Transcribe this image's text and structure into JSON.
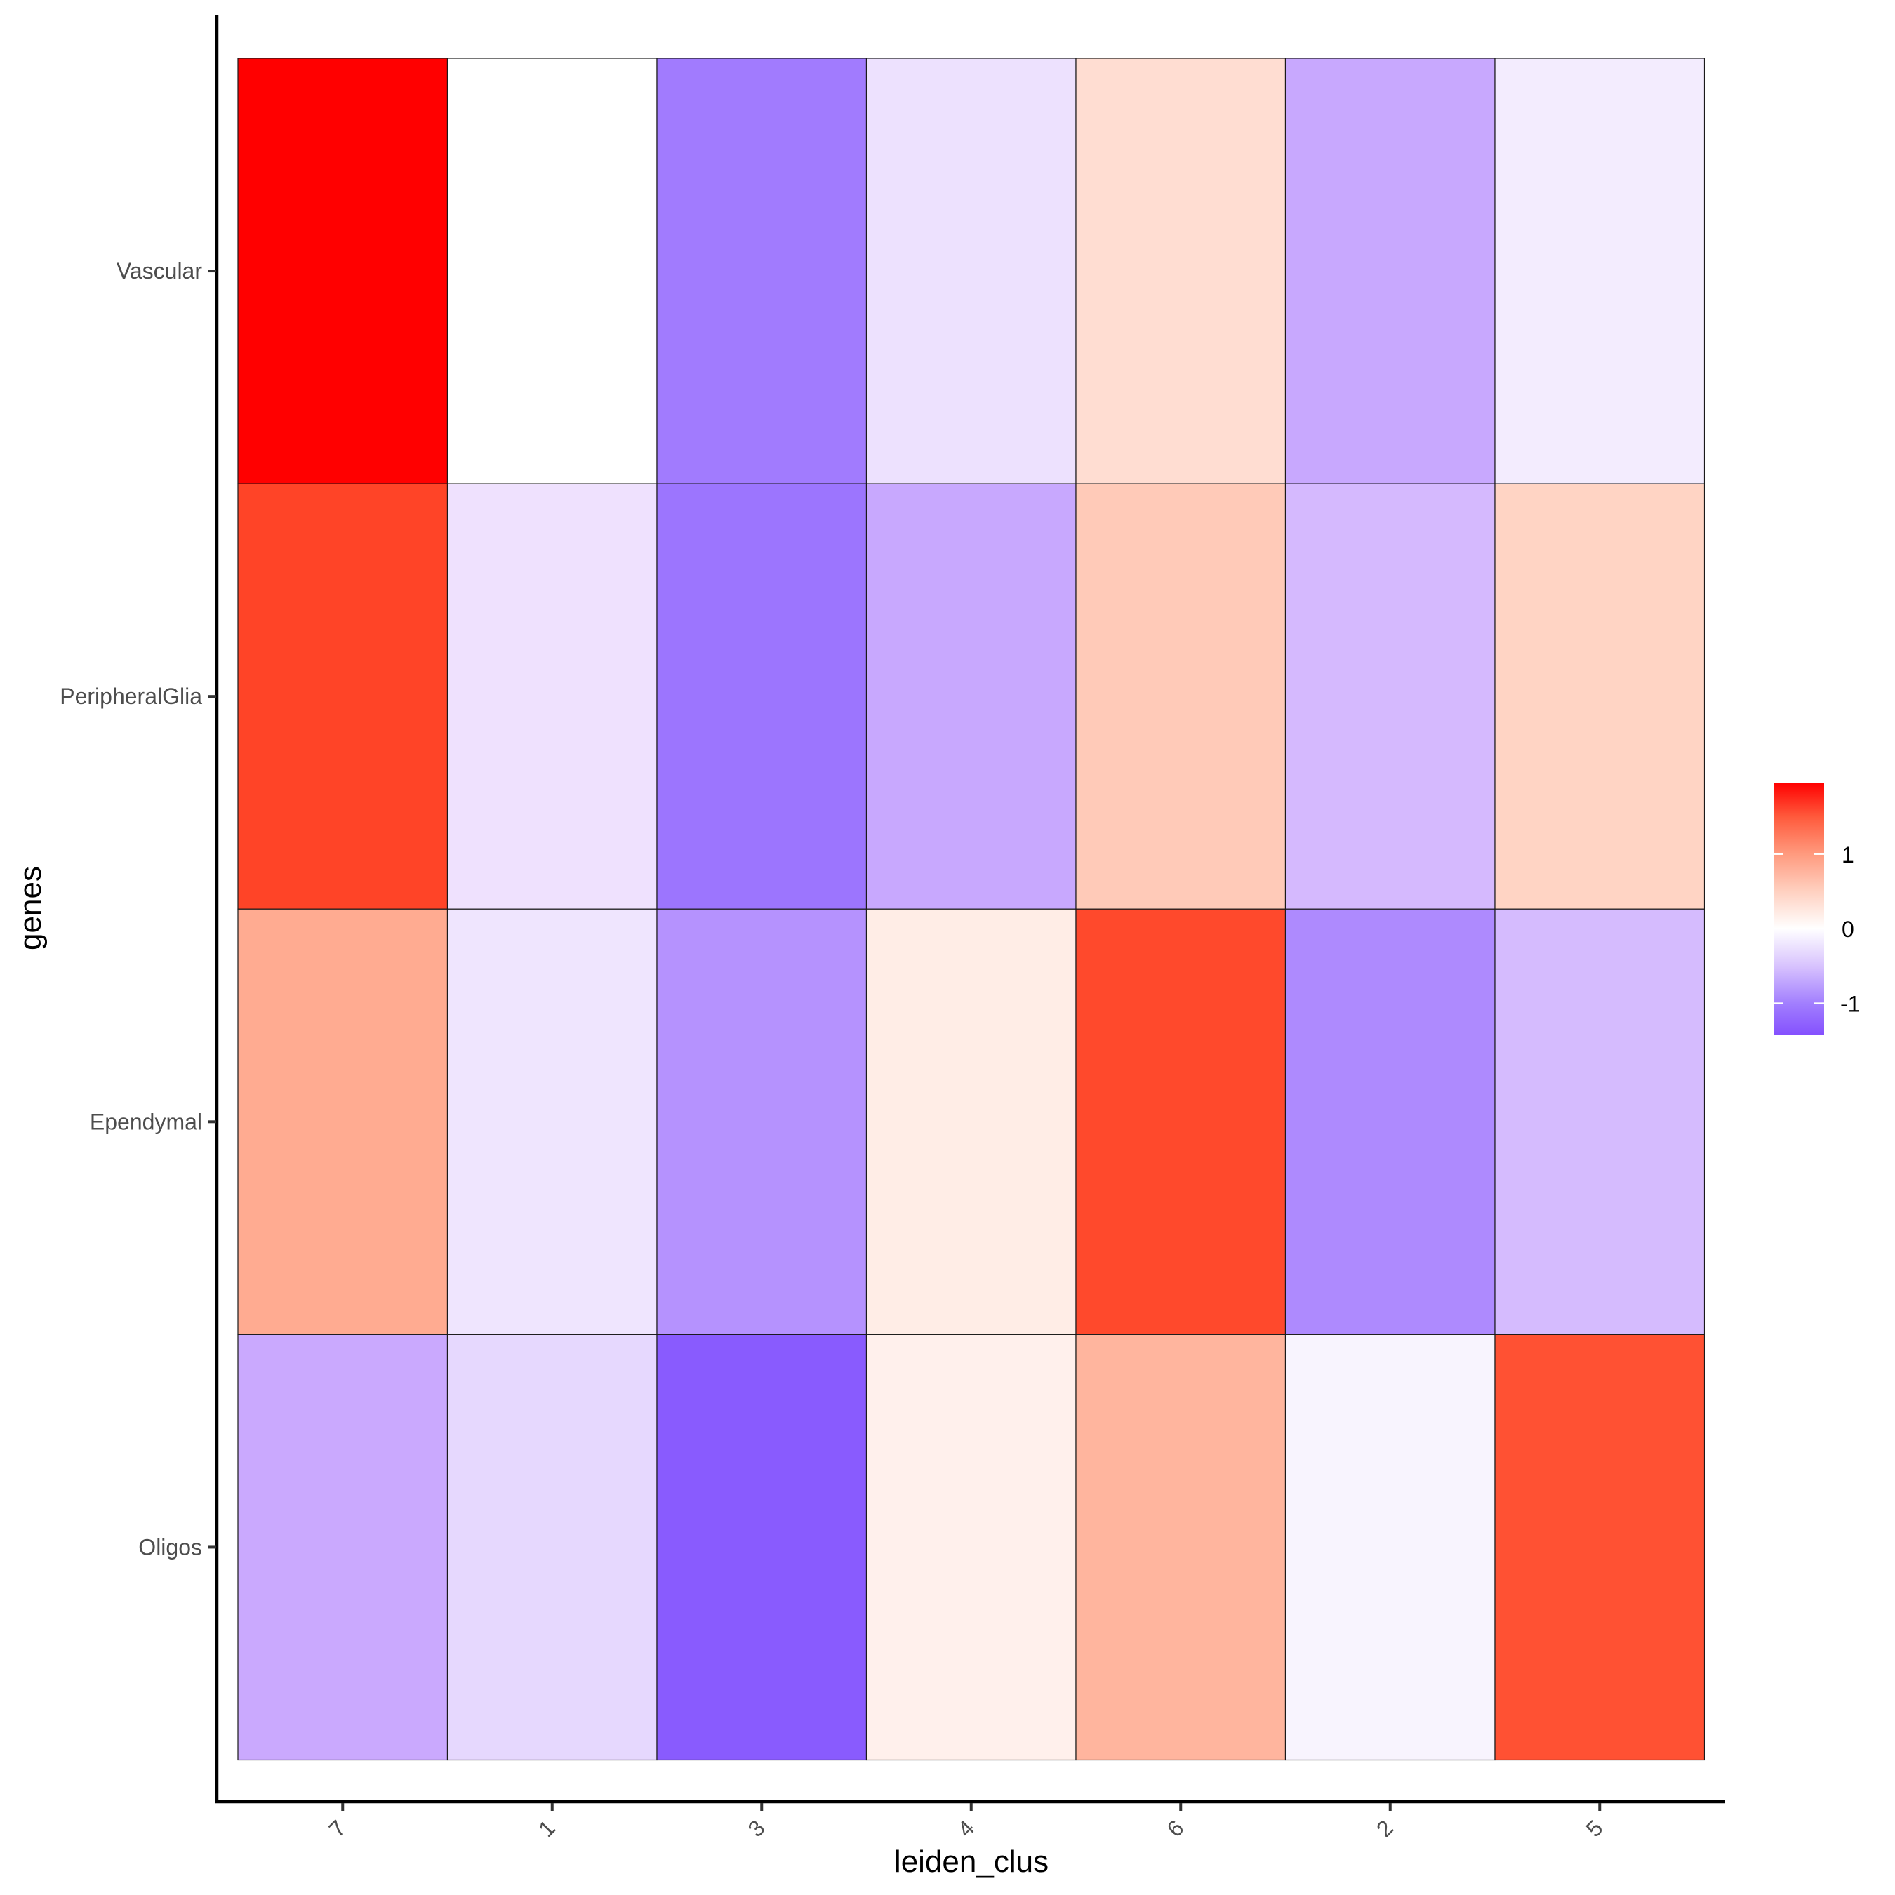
{
  "chart_data": {
    "type": "heatmap",
    "title": "",
    "xlabel": "leiden_clus",
    "ylabel": "genes",
    "x_categories": [
      "7",
      "1",
      "3",
      "4",
      "6",
      "2",
      "5"
    ],
    "y_categories": [
      "Vascular",
      "PeripheralGlia",
      "Ependymal",
      "Oligos"
    ],
    "values": [
      [
        1.96,
        0.0,
        -1.05,
        -0.16,
        0.4,
        -0.6,
        -0.09
      ],
      [
        1.65,
        -0.15,
        -1.12,
        -0.6,
        0.6,
        -0.45,
        0.5
      ],
      [
        0.85,
        -0.13,
        -0.83,
        0.2,
        1.62,
        -0.9,
        -0.44
      ],
      [
        -0.58,
        -0.23,
        -1.35,
        0.15,
        0.8,
        -0.04,
        1.56
      ]
    ],
    "fills": [
      [
        "#FF0000",
        "#FFFFFF",
        "#A17BFE",
        "#EDE1FE",
        "#FFDDD2",
        "#C8A8FE",
        "#F3ECFE"
      ],
      [
        "#FF4427",
        "#EFE1FE",
        "#9C75FE",
        "#C8A8FE",
        "#FFCAB8",
        "#D5B9FE",
        "#FFD4C4"
      ],
      [
        "#FFAB91",
        "#EFE5FE",
        "#B592FE",
        "#FFEDE6",
        "#FF492C",
        "#AE8AFE",
        "#D5BBFE"
      ],
      [
        "#CAA9FE",
        "#E6D8FE",
        "#895BFE",
        "#FFF0EC",
        "#FFB59E",
        "#F8F4FE",
        "#FF5133"
      ]
    ],
    "colorscale": {
      "low": "#8450FE",
      "mid": "#FFFFFF",
      "high": "#FF0000",
      "range": [
        -1.43,
        1.96
      ],
      "ticks": [
        1,
        0,
        -1
      ],
      "tick_labels": [
        "1",
        "0",
        "-1"
      ]
    },
    "legend_position": "right",
    "grid": false
  }
}
